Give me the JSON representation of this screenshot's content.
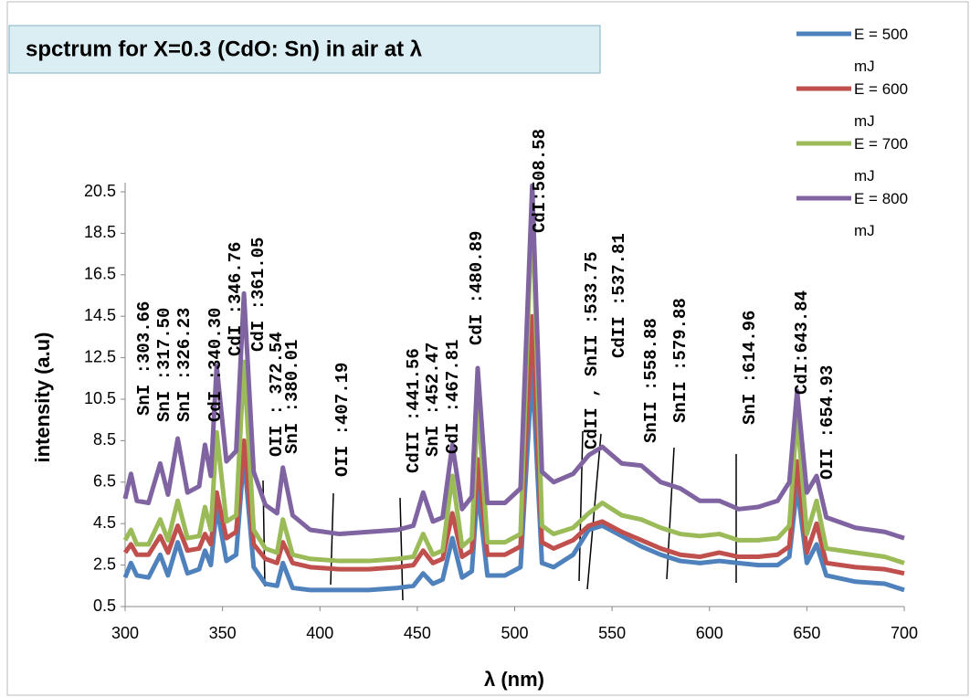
{
  "chart_data": {
    "type": "line",
    "title": "spctrum for X=0.3 (CdO: Sn) in air at λ",
    "x_label": "λ (nm)",
    "y_label": "intensity (a.u)",
    "x": [
      300,
      303,
      306,
      312,
      318,
      322,
      327,
      332,
      338,
      341,
      344,
      347,
      352,
      357,
      361,
      366,
      372,
      378,
      381,
      386,
      395,
      410,
      425,
      440,
      448,
      453,
      458,
      463,
      468,
      473,
      478,
      481,
      486,
      495,
      503,
      509,
      514,
      520,
      530,
      538,
      545,
      555,
      565,
      575,
      585,
      595,
      605,
      615,
      625,
      635,
      641,
      645,
      650,
      655,
      660,
      675,
      690,
      700
    ],
    "series": [
      {
        "name": "E = 500 mJ",
        "color": "#4f81bd",
        "values": [
          1.9,
          2.6,
          2.0,
          1.9,
          3.0,
          2.0,
          3.6,
          2.1,
          2.3,
          3.2,
          2.5,
          5.3,
          2.7,
          3.0,
          7.8,
          2.4,
          1.6,
          1.5,
          2.6,
          1.4,
          1.3,
          1.3,
          1.3,
          1.4,
          1.5,
          2.1,
          1.6,
          1.8,
          3.8,
          1.9,
          2.2,
          6.2,
          2.0,
          2.0,
          2.4,
          12.0,
          2.6,
          2.4,
          3.0,
          4.2,
          4.4,
          3.9,
          3.4,
          3.0,
          2.7,
          2.6,
          2.7,
          2.6,
          2.5,
          2.5,
          2.9,
          6.3,
          2.6,
          3.5,
          2.0,
          1.7,
          1.6,
          1.3
        ]
      },
      {
        "name": "E = 600 mJ",
        "color": "#c0504d",
        "values": [
          3.1,
          3.5,
          3.0,
          3.0,
          3.9,
          3.1,
          4.4,
          3.2,
          3.3,
          4.0,
          3.5,
          6.0,
          3.8,
          4.1,
          8.5,
          3.5,
          2.8,
          2.6,
          3.6,
          2.6,
          2.4,
          2.3,
          2.3,
          2.4,
          2.5,
          3.2,
          2.6,
          2.8,
          5.0,
          2.9,
          3.2,
          7.6,
          3.0,
          3.0,
          3.4,
          14.5,
          3.6,
          3.3,
          3.7,
          4.4,
          4.6,
          4.1,
          3.7,
          3.3,
          3.0,
          2.9,
          3.1,
          2.9,
          2.9,
          3.0,
          3.4,
          7.5,
          3.1,
          4.5,
          2.6,
          2.4,
          2.3,
          2.1
        ]
      },
      {
        "name": "E = 700 mJ",
        "color": "#9bbb59",
        "values": [
          3.7,
          4.2,
          3.5,
          3.5,
          4.7,
          3.7,
          5.6,
          3.8,
          3.9,
          5.3,
          4.2,
          8.9,
          4.6,
          4.9,
          12.3,
          4.2,
          3.3,
          3.1,
          4.7,
          3.0,
          2.8,
          2.7,
          2.7,
          2.8,
          2.9,
          4.0,
          3.0,
          3.2,
          6.8,
          3.4,
          3.8,
          10.5,
          3.6,
          3.6,
          4.0,
          20.0,
          4.4,
          4.0,
          4.3,
          5.0,
          5.5,
          4.9,
          4.7,
          4.3,
          4.0,
          3.9,
          4.0,
          3.7,
          3.7,
          3.8,
          4.4,
          9.8,
          4.0,
          5.6,
          3.3,
          3.1,
          2.9,
          2.6
        ]
      },
      {
        "name": "E = 800 mJ",
        "color": "#8064a2",
        "values": [
          5.7,
          6.9,
          5.6,
          5.5,
          7.4,
          5.9,
          8.6,
          6.0,
          6.3,
          8.3,
          6.8,
          12.1,
          7.5,
          8.0,
          15.6,
          7.0,
          5.4,
          5.0,
          7.2,
          4.9,
          4.2,
          4.0,
          4.1,
          4.2,
          4.4,
          6.0,
          4.6,
          4.8,
          8.3,
          5.2,
          5.8,
          12.0,
          5.5,
          5.5,
          6.2,
          20.8,
          7.0,
          6.5,
          6.9,
          7.8,
          8.2,
          7.4,
          7.3,
          6.5,
          6.2,
          5.6,
          5.6,
          5.2,
          5.3,
          5.6,
          6.5,
          10.9,
          6.0,
          6.8,
          4.8,
          4.3,
          4.1,
          3.8
        ]
      }
    ],
    "xlim": [
      300,
      700
    ],
    "xticks": [
      300,
      350,
      400,
      450,
      500,
      550,
      600,
      650,
      700
    ],
    "ylim": [
      0.5,
      20.5
    ],
    "yticks": [
      0.5,
      2.5,
      4.5,
      6.5,
      8.5,
      10.5,
      12.5,
      14.5,
      16.5,
      18.5,
      20.5
    ],
    "legend": "top-right",
    "annotations": [
      "SnI :303.66",
      "SnI :317.50",
      "SnI :326.23",
      "CdI :340.30",
      "CdI :346.76",
      "CdI :361.05",
      "OII : 372.54",
      "SnI :380.01",
      "OII :407.19",
      "CdII :441.56",
      "SnI :452.47",
      "CdI :467.81",
      "CdI :480.89",
      "CdI:508.58",
      "CdII , SnII :533.75",
      "CdII :537.81",
      "SnII :558.88",
      "SnII :579.88",
      "SnI :614.96",
      "CdI:643.84",
      "OII :654.93"
    ]
  }
}
